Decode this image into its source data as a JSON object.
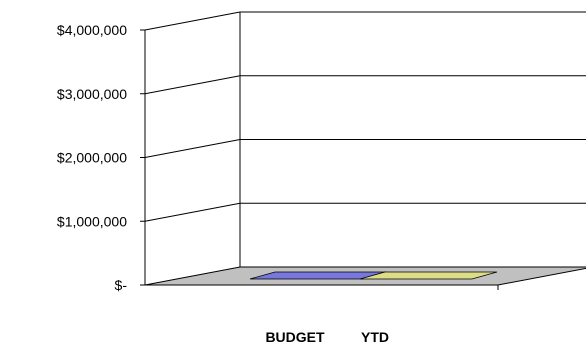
{
  "chart_data": {
    "type": "bar",
    "style": "3d",
    "categories": [
      "BUDGET",
      "YTD"
    ],
    "values": [
      0,
      0
    ],
    "ylim": [
      0,
      4000000
    ],
    "yticks": [
      0,
      1000000,
      2000000,
      3000000,
      4000000
    ],
    "ytick_labels": [
      "$-",
      "$1,000,000",
      "$2,000,000",
      "$3,000,000",
      "$4,000,000"
    ],
    "grid": true,
    "colors": {
      "BUDGET": "#7777DD",
      "YTD": "#DDDD88",
      "floor": "#C0C0C0"
    },
    "title": "",
    "xlabel": "",
    "ylabel": ""
  }
}
